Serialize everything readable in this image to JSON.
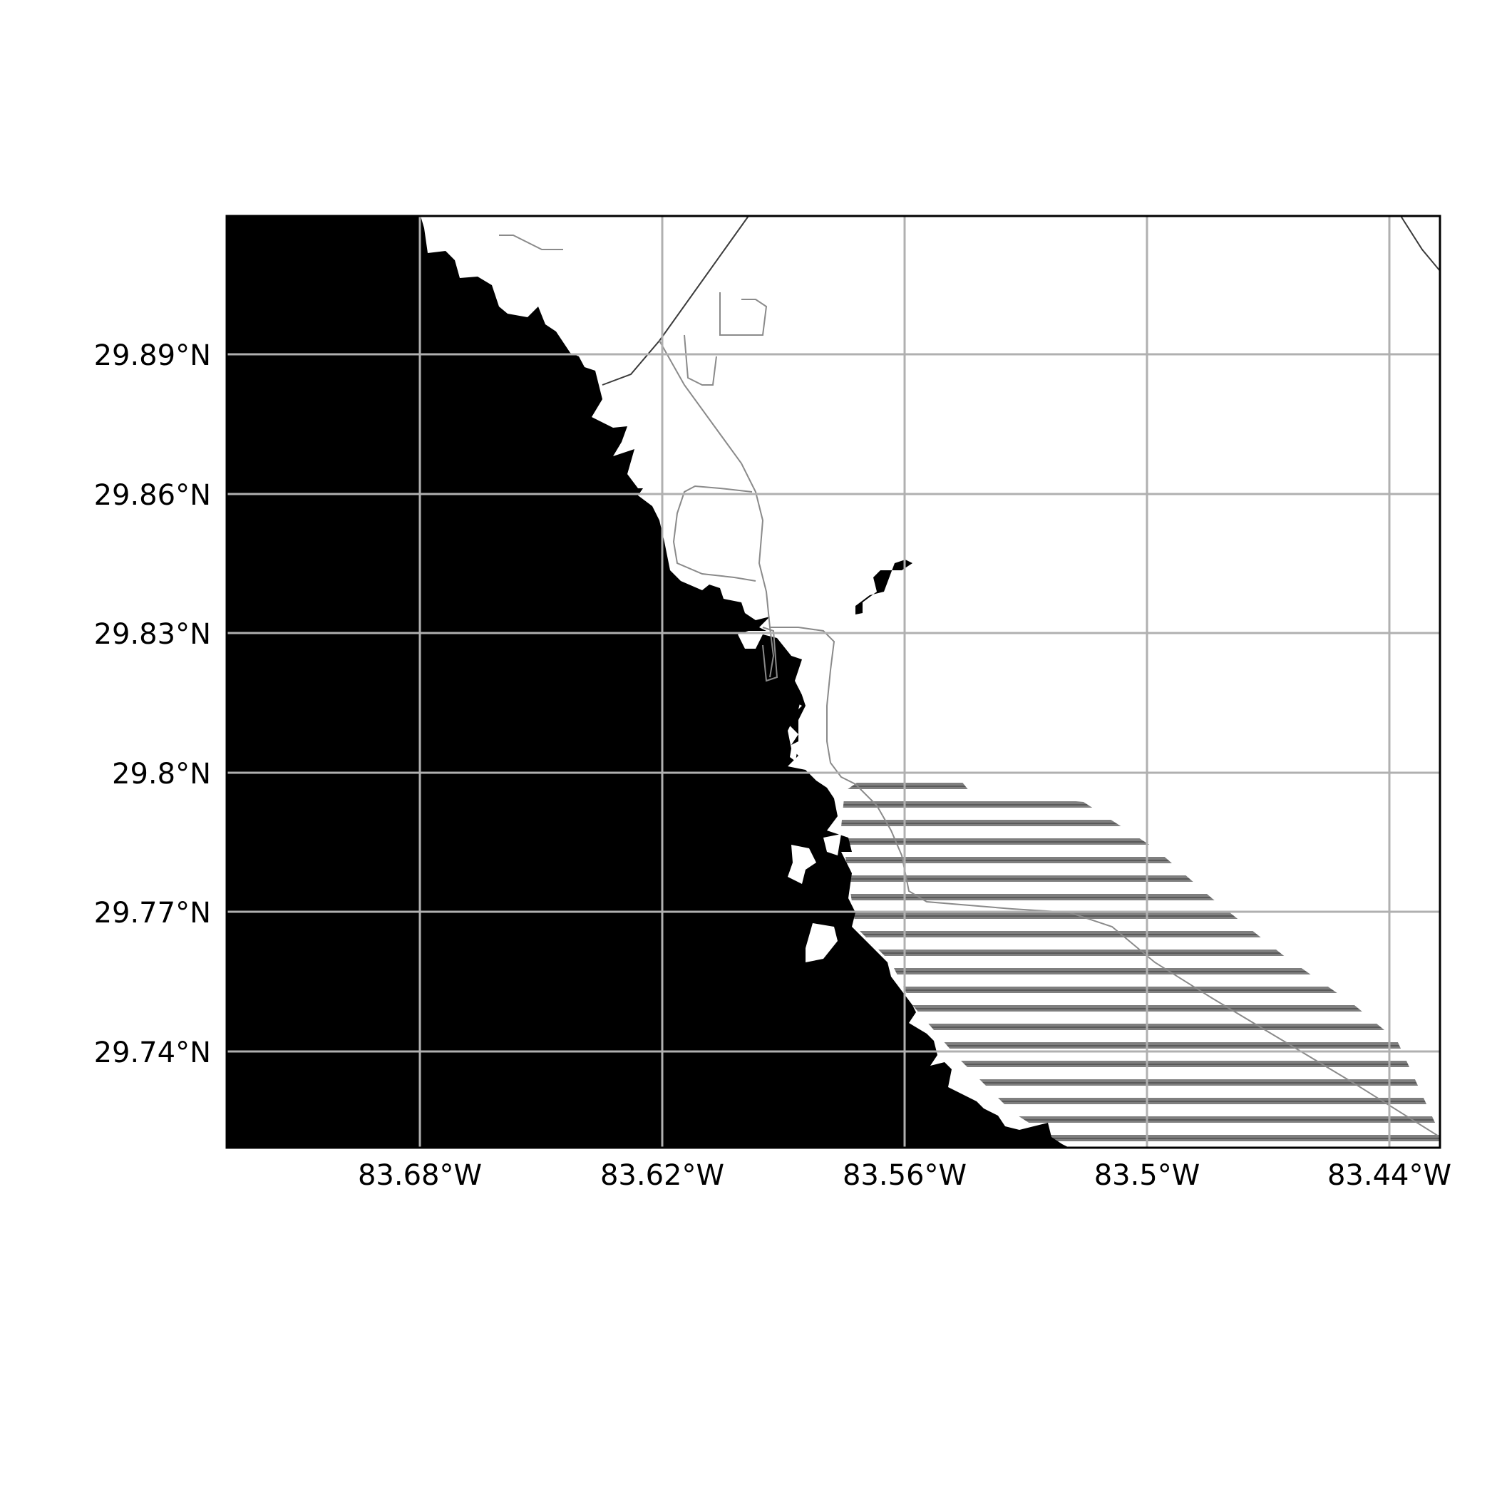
{
  "map": {
    "longitude_ticks": [
      "83.68°W",
      "83.62°W",
      "83.56°W",
      "83.5°W",
      "83.44°W"
    ],
    "latitude_ticks": [
      "29.89°N",
      "29.86°N",
      "29.83°N",
      "29.8°N",
      "29.77°N",
      "29.74°N"
    ],
    "colors": {
      "water": "#000000",
      "land": "#ffffff",
      "gridline": "#b0b0b0",
      "hatched_area": "#7f7f7f",
      "road": "#8a8a8a"
    },
    "grid": true,
    "basemap_style": "black water / white land with road network and striped grey region"
  }
}
